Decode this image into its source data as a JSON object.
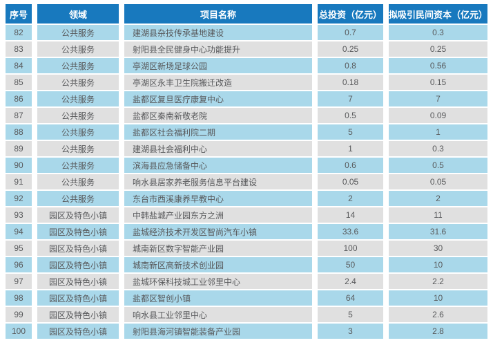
{
  "colors": {
    "header_bg": "#1879BE",
    "header_text": "#FFFFFF",
    "row_blue": "#A9D8EA",
    "row_gray": "#E0E0E0",
    "body_text": "#58595B",
    "page_bg": "#FFFFFF"
  },
  "table": {
    "columns": [
      "序号",
      "领域",
      "项目名称",
      "总投资（亿元）",
      "拟吸引民间资本（亿元）"
    ],
    "rows": [
      {
        "no": "82",
        "field": "公共服务",
        "name": "建湖县杂技传承基地建设",
        "invest": "0.7",
        "capital": "0.3"
      },
      {
        "no": "83",
        "field": "公共服务",
        "name": "射阳县全民健身中心功能提升",
        "invest": "0.25",
        "capital": "0.25"
      },
      {
        "no": "84",
        "field": "公共服务",
        "name": "亭湖区新场足球公园",
        "invest": "0.8",
        "capital": "0.56"
      },
      {
        "no": "85",
        "field": "公共服务",
        "name": "亭湖区永丰卫生院搬迁改造",
        "invest": "0.18",
        "capital": "0.15"
      },
      {
        "no": "86",
        "field": "公共服务",
        "name": "盐都区复旦医疗康复中心",
        "invest": "7",
        "capital": "7"
      },
      {
        "no": "87",
        "field": "公共服务",
        "name": "盐都区秦南新敬老院",
        "invest": "0.5",
        "capital": "0.09"
      },
      {
        "no": "88",
        "field": "公共服务",
        "name": "盐都区社会福利院二期",
        "invest": "5",
        "capital": "1"
      },
      {
        "no": "89",
        "field": "公共服务",
        "name": "建湖县社会福利中心",
        "invest": "1",
        "capital": "0.3"
      },
      {
        "no": "90",
        "field": "公共服务",
        "name": "滨海县应急储备中心",
        "invest": "0.6",
        "capital": "0.5"
      },
      {
        "no": "91",
        "field": "公共服务",
        "name": "响水县居家养老服务信息平台建设",
        "invest": "0.05",
        "capital": "0.05"
      },
      {
        "no": "92",
        "field": "公共服务",
        "name": "东台市西溪康养早教中心",
        "invest": "2",
        "capital": "2"
      },
      {
        "no": "93",
        "field": "园区及特色小镇",
        "name": "中韩盐城产业园东方之洲",
        "invest": "14",
        "capital": "11"
      },
      {
        "no": "94",
        "field": "园区及特色小镇",
        "name": "盐城经济技术开发区智尚汽车小镇",
        "invest": "33.6",
        "capital": "31.6"
      },
      {
        "no": "95",
        "field": "园区及特色小镇",
        "name": "城南新区数字智能产业园",
        "invest": "100",
        "capital": "30"
      },
      {
        "no": "96",
        "field": "园区及特色小镇",
        "name": "城南新区高新技术创业园",
        "invest": "50",
        "capital": "10"
      },
      {
        "no": "97",
        "field": "园区及特色小镇",
        "name": "盐城环保科技城工业邻里中心",
        "invest": "2.4",
        "capital": "2.2"
      },
      {
        "no": "98",
        "field": "园区及特色小镇",
        "name": "盐都区智创小镇",
        "invest": "64",
        "capital": "10"
      },
      {
        "no": "99",
        "field": "园区及特色小镇",
        "name": "响水县工业邻里中心",
        "invest": "5",
        "capital": "2.6"
      },
      {
        "no": "100",
        "field": "园区及特色小镇",
        "name": "射阳县海河镇智能装备产业园",
        "invest": "3",
        "capital": "2.8"
      }
    ]
  }
}
